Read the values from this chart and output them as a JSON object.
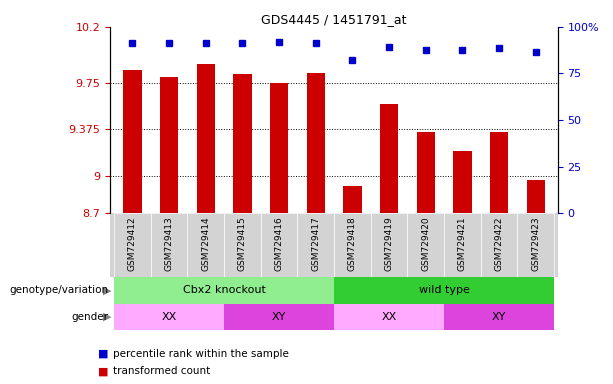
{
  "title": "GDS4445 / 1451791_at",
  "samples": [
    "GSM729412",
    "GSM729413",
    "GSM729414",
    "GSM729415",
    "GSM729416",
    "GSM729417",
    "GSM729418",
    "GSM729419",
    "GSM729420",
    "GSM729421",
    "GSM729422",
    "GSM729423"
  ],
  "red_values": [
    9.85,
    9.8,
    9.9,
    9.82,
    9.75,
    9.83,
    8.92,
    9.58,
    9.35,
    9.2,
    9.35,
    8.97
  ],
  "blue_values": [
    10.07,
    10.07,
    10.07,
    10.07,
    10.08,
    10.07,
    9.93,
    10.04,
    10.01,
    10.01,
    10.03,
    10.0
  ],
  "ylim": [
    8.7,
    10.2
  ],
  "yticks": [
    8.7,
    9.0,
    9.375,
    9.75,
    10.2
  ],
  "ytick_labels": [
    "8.7",
    "9",
    "9.375",
    "9.75",
    "10.2"
  ],
  "right_yticks": [
    0,
    25,
    50,
    75,
    100
  ],
  "right_ytick_labels": [
    "0",
    "25",
    "50",
    "75",
    "100%"
  ],
  "bar_color": "#cc0000",
  "dot_color": "#0000cc",
  "sample_bg": "#d3d3d3",
  "genotype_groups": [
    {
      "label": "Cbx2 knockout",
      "start": 0,
      "end": 5,
      "color": "#90ee90"
    },
    {
      "label": "wild type",
      "start": 6,
      "end": 11,
      "color": "#32cd32"
    }
  ],
  "gender_groups": [
    {
      "label": "XX",
      "start": 0,
      "end": 2,
      "color": "#ffaaff"
    },
    {
      "label": "XY",
      "start": 3,
      "end": 5,
      "color": "#dd44dd"
    },
    {
      "label": "XX",
      "start": 6,
      "end": 8,
      "color": "#ffaaff"
    },
    {
      "label": "XY",
      "start": 9,
      "end": 11,
      "color": "#dd44dd"
    }
  ],
  "legend_items": [
    {
      "label": "transformed count",
      "color": "#cc0000"
    },
    {
      "label": "percentile rank within the sample",
      "color": "#0000cc"
    }
  ],
  "tick_label_color_left": "#cc0000",
  "tick_label_color_right": "#0000cc"
}
